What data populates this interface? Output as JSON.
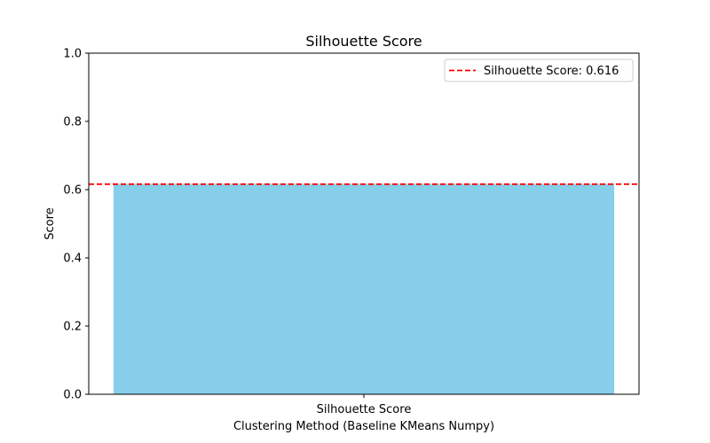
{
  "chart_data": {
    "type": "bar",
    "title": "Silhouette Score",
    "xlabel": "Clustering Method (Baseline KMeans Numpy)",
    "ylabel": "Score",
    "categories": [
      "Silhouette Score"
    ],
    "values": [
      0.616
    ],
    "ylim": [
      0,
      1.0
    ],
    "yticks": [
      "0.0",
      "0.2",
      "0.4",
      "0.6",
      "0.8",
      "1.0"
    ],
    "bar_color": "#87CEEB",
    "reference_line": {
      "value": 0.616,
      "label": "Silhouette Score: 0.616",
      "color": "#FF0000",
      "style": "dashed"
    },
    "legend_position": "top-right",
    "grid": false
  }
}
